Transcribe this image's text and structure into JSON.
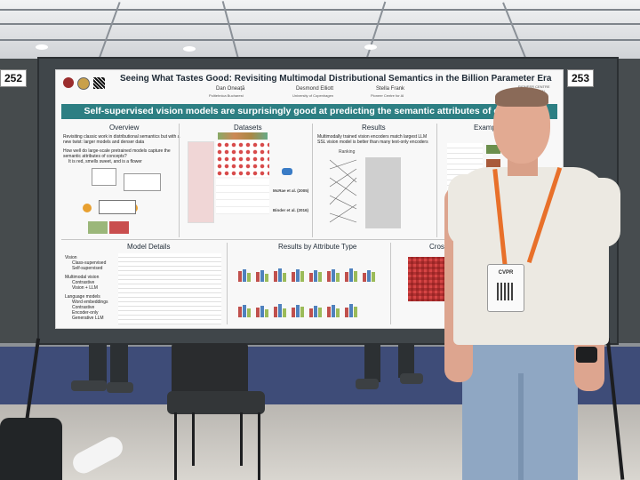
{
  "booth": {
    "left_number": "252",
    "right_number": "253"
  },
  "poster": {
    "title": "Seeing What Tastes Good: Revisiting Multimodal Distributional Semantics in the Billion Parameter Era",
    "authors": [
      {
        "name": "Dan Oneață",
        "affiliation": "Politehnica Bucharest"
      },
      {
        "name": "Desmond Elliott",
        "affiliation": "University of Copenhagen"
      },
      {
        "name": "Stella Frank",
        "affiliation": "Pioneer Centre for AI"
      }
    ],
    "logo_text": "PIONEER CENTRE FOR ARTIFICIAL",
    "banner": "Self-supervised vision models are surprisingly good at predicting the semantic attributes of concepts",
    "overview": {
      "title": "Overview",
      "bullets": [
        "Revisiting classic work in distributional semantics but with a",
        "new twist: larger models and denser data",
        "How well do large-scale pretrained models capture the",
        "semantic attributes of concepts?",
        "It is red, smells sweet, and is a flower"
      ]
    },
    "datasets": {
      "title": "Datasets",
      "refs": [
        "McRae et al. (2005)",
        "Binder et al. (2016)"
      ]
    },
    "results": {
      "title": "Results",
      "bullets": [
        "Multimodally trained vision encoders match largest LLM",
        "SSL vision model is better than many text-only encoders"
      ],
      "ranking_label": "Ranking"
    },
    "example": {
      "title": "Example P"
    },
    "model_details": {
      "title": "Model Details",
      "groups": [
        {
          "label": "Vision",
          "items": [
            "Class-supervised",
            "Self-supervised"
          ]
        },
        {
          "label": "Multimodal vision",
          "items": [
            "Contrastive",
            "Vision + LLM"
          ]
        },
        {
          "label": "Language models",
          "items": [
            "Word embeddings",
            "Contrastive",
            "Encoder-only",
            "Generative LLM"
          ]
        }
      ]
    },
    "results_by_attribute": {
      "title": "Results by Attribute Type"
    },
    "cross": {
      "title": "Cross-M"
    }
  },
  "badge": {
    "text": "CVPR"
  },
  "colors": {
    "banner": "#2d7f83",
    "lanyard": "#e8702a",
    "carpet": "#3e4c78"
  }
}
